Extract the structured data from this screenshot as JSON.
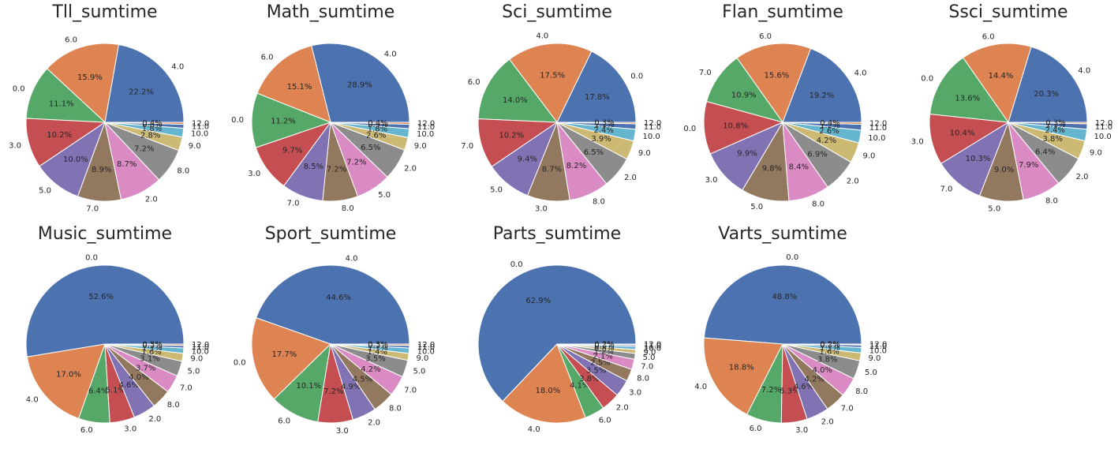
{
  "chart_data": [
    {
      "type": "pie",
      "title": "Tll_sumtime",
      "labels": [
        "4.0",
        "6.0",
        "0.0",
        "3.0",
        "5.0",
        "7.0",
        "2.0",
        "8.0",
        "9.0",
        "10.0",
        "11.0",
        "12.0"
      ],
      "values": [
        22.2,
        15.9,
        11.1,
        10.2,
        10.0,
        8.9,
        8.7,
        7.2,
        2.8,
        1.8,
        0.8,
        0.4
      ],
      "autopct": [
        "22.2%",
        "15.9%",
        "11.1%",
        "10.2%",
        "10.0%",
        "8.9%",
        "8.7%",
        "7.2%",
        "2.8%",
        "1.8%",
        "0.8%",
        "0.4%"
      ]
    },
    {
      "type": "pie",
      "title": "Math_sumtime",
      "labels": [
        "4.0",
        "6.0",
        "0.0",
        "3.0",
        "7.0",
        "8.0",
        "5.0",
        "2.0",
        "9.0",
        "10.0",
        "11.0",
        "12.0"
      ],
      "values": [
        28.9,
        15.1,
        11.2,
        9.7,
        8.5,
        7.2,
        7.2,
        6.5,
        2.6,
        1.8,
        0.9,
        0.4
      ],
      "autopct": [
        "28.9%",
        "15.1%",
        "11.2%",
        "9.7%",
        "8.5%",
        "7.2%",
        "7.2%",
        "6.5%",
        "2.6%",
        "1.8%",
        "0.9%",
        "0.4%"
      ]
    },
    {
      "type": "pie",
      "title": "Sci_sumtime",
      "labels": [
        "0.0",
        "4.0",
        "6.0",
        "7.0",
        "5.0",
        "3.0",
        "8.0",
        "2.0",
        "9.0",
        "10.0",
        "11.0",
        "12.0"
      ],
      "values": [
        17.8,
        17.5,
        14.0,
        10.2,
        9.4,
        8.7,
        8.2,
        6.5,
        3.9,
        2.4,
        1.1,
        0.3
      ],
      "autopct": [
        "17.8%",
        "17.5%",
        "14.0%",
        "10.2%",
        "9.4%",
        "8.7%",
        "8.2%",
        "6.5%",
        "3.9%",
        "2.4%",
        "1.1%",
        "0.3%"
      ]
    },
    {
      "type": "pie",
      "title": "Flan_sumtime",
      "labels": [
        "4.0",
        "6.0",
        "7.0",
        "0.0",
        "3.0",
        "5.0",
        "8.0",
        "2.0",
        "9.0",
        "10.0",
        "11.0",
        "12.0"
      ],
      "values": [
        19.2,
        15.6,
        10.9,
        10.8,
        9.9,
        9.8,
        8.4,
        6.9,
        4.2,
        2.6,
        1.2,
        0.4
      ],
      "autopct": [
        "19.2%",
        "15.6%",
        "10.9%",
        "10.8%",
        "9.9%",
        "9.8%",
        "8.4%",
        "6.9%",
        "4.2%",
        "2.6%",
        "1.2%",
        "0.4%"
      ]
    },
    {
      "type": "pie",
      "title": "Ssci_sumtime",
      "labels": [
        "4.0",
        "6.0",
        "0.0",
        "3.0",
        "7.0",
        "5.0",
        "8.0",
        "2.0",
        "9.0",
        "10.0",
        "11.0",
        "12.0"
      ],
      "values": [
        20.3,
        14.4,
        13.6,
        10.4,
        10.3,
        9.0,
        7.9,
        6.4,
        3.8,
        2.4,
        1.1,
        0.3
      ],
      "autopct": [
        "20.3%",
        "14.4%",
        "13.6%",
        "10.4%",
        "10.3%",
        "9.0%",
        "7.9%",
        "6.4%",
        "3.8%",
        "2.4%",
        "1.1%",
        "0.3%"
      ]
    },
    {
      "type": "pie",
      "title": "Music_sumtime",
      "labels": [
        "0.0",
        "4.0",
        "6.0",
        "3.0",
        "2.0",
        "8.0",
        "7.0",
        "5.0",
        "9.0",
        "10.0",
        "11.0",
        "12.0"
      ],
      "values": [
        52.6,
        17.0,
        6.4,
        5.1,
        4.6,
        4.0,
        3.7,
        3.1,
        1.6,
        1.1,
        0.5,
        0.3
      ],
      "autopct": [
        "52.6%",
        "17.0%",
        "6.4%",
        "5.1%",
        "4.6%",
        "4.0%",
        "3.7%",
        "3.1%",
        "1.6%",
        "1.1%",
        "0.5%",
        "0.3%"
      ]
    },
    {
      "type": "pie",
      "title": "Sport_sumtime",
      "labels": [
        "4.0",
        "0.0",
        "6.0",
        "3.0",
        "2.0",
        "8.0",
        "7.0",
        "5.0",
        "9.0",
        "10.0",
        "11.0",
        "12.0"
      ],
      "values": [
        44.6,
        17.7,
        10.1,
        7.2,
        4.9,
        4.5,
        4.2,
        3.5,
        1.4,
        1.1,
        0.5,
        0.3
      ],
      "autopct": [
        "44.6%",
        "17.7%",
        "10.1%",
        "7.2%",
        "4.9%",
        "4.5%",
        "4.2%",
        "3.5%",
        "1.4%",
        "1.1%",
        "0.5%",
        "0.3%"
      ]
    },
    {
      "type": "pie",
      "title": "Parts_sumtime",
      "labels": [
        "0.0",
        "4.0",
        "6.0",
        "2.0",
        "3.0",
        "8.0",
        "7.0",
        "5.0",
        "9.0",
        "10.0",
        "11.0",
        "12.0"
      ],
      "values": [
        62.9,
        18.0,
        4.1,
        3.8,
        3.5,
        2.5,
        2.1,
        1.2,
        0.8,
        0.6,
        0.3,
        0.2
      ],
      "autopct": [
        "62.9%",
        "18.0%",
        "4.1%",
        "3.8%",
        "3.5%",
        "2.5%",
        "2.1%",
        "1.2%",
        "0.8%",
        "0.6%",
        "0.3%",
        "0.2%"
      ]
    },
    {
      "type": "pie",
      "title": "Varts_sumtime",
      "labels": [
        "0.0",
        "4.0",
        "6.0",
        "3.0",
        "2.0",
        "7.0",
        "8.0",
        "5.0",
        "9.0",
        "10.0",
        "11.0",
        "12.0"
      ],
      "values": [
        48.8,
        18.8,
        7.2,
        5.3,
        4.6,
        4.2,
        4.0,
        3.8,
        1.6,
        1.1,
        0.5,
        0.2
      ],
      "autopct": [
        "48.8%",
        "18.8%",
        "7.2%",
        "5.3%",
        "4.6%",
        "4.2%",
        "4.0%",
        "3.8%",
        "1.6%",
        "1.1%",
        "0.5%",
        "0.2%"
      ]
    }
  ],
  "palette": [
    "#4c72b0",
    "#dd8452",
    "#55a868",
    "#c44e52",
    "#8172b3",
    "#937860",
    "#da8bc3",
    "#8c8c8c",
    "#ccb974",
    "#64b5cd",
    "#4c72b0",
    "#dd8452"
  ],
  "edge_color": "#ffffff"
}
